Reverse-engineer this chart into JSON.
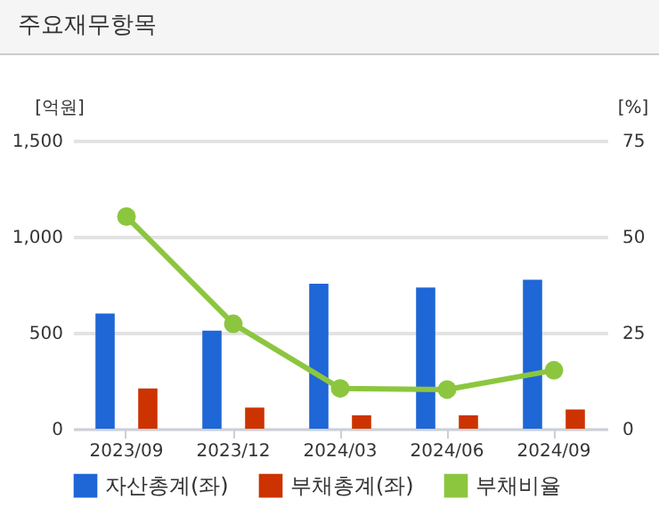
{
  "chart_data": {
    "type": "bar",
    "title": "주요재무항목",
    "categories": [
      "2023/09",
      "2023/12",
      "2024/03",
      "2024/06",
      "2024/09"
    ],
    "series": [
      {
        "name": "자산총계(좌)",
        "color": "#1f66d6",
        "values": [
          600,
          510,
          755,
          735,
          775
        ]
      },
      {
        "name": "부채총계(좌)",
        "color": "#cc3300",
        "values": [
          210,
          110,
          70,
          70,
          100
        ]
      },
      {
        "name": "부채비율",
        "type": "line",
        "axis": "y2",
        "color": "#8cc63f",
        "marker": "circle",
        "values": [
          55.2,
          27.3,
          10.5,
          10.2,
          15.2
        ]
      }
    ],
    "ylabel": "[억원]",
    "y2label": "[%]",
    "ylim": [
      0,
      1500
    ],
    "yticks": [
      0,
      500,
      {
        "value": 1000,
        "label": "1,000"
      },
      {
        "value": 1500,
        "label": "1,500"
      }
    ],
    "y2lim": [
      0,
      75
    ],
    "y2ticks": [
      0,
      25,
      50,
      75
    ],
    "grid": "y",
    "legend": "bottom"
  }
}
